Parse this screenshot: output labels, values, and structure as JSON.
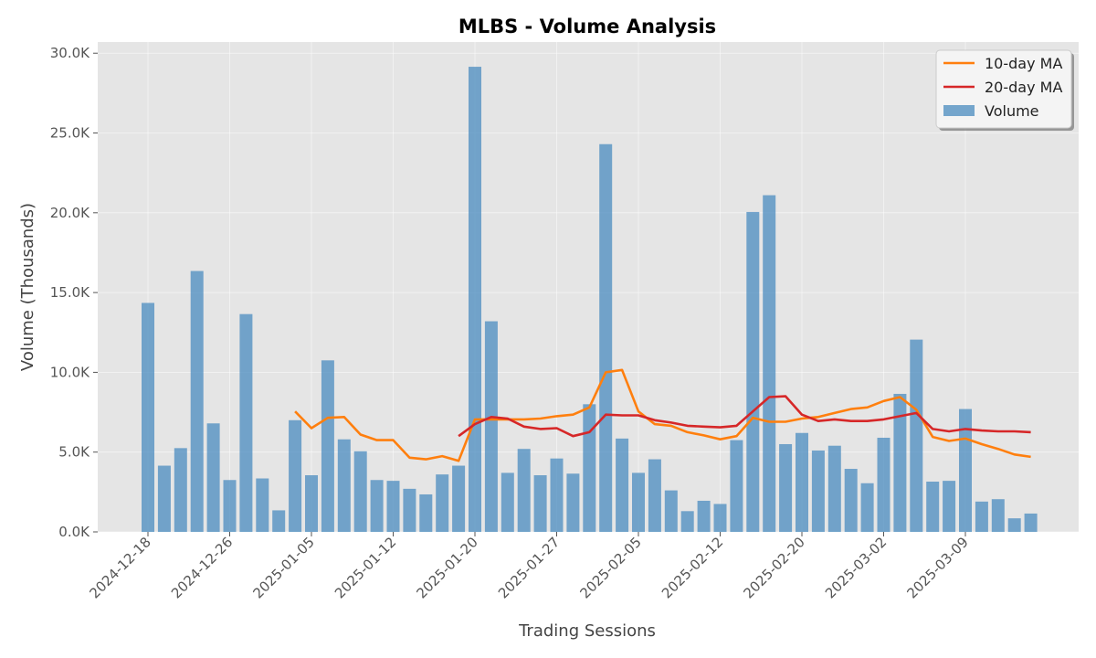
{
  "chart_data": {
    "type": "bar",
    "title": "MLBS - Volume Analysis",
    "xlabel": "Trading Sessions",
    "ylabel": "Volume (Thousands)",
    "ylim": [
      0,
      30700
    ],
    "y_ticks": [
      "0.0K",
      "5.0K",
      "10.0K",
      "15.0K",
      "20.0K",
      "25.0K",
      "30.0K"
    ],
    "y_tick_values": [
      0,
      5000,
      10000,
      15000,
      20000,
      25000,
      30000
    ],
    "x_tick_labels": [
      "2024-12-18",
      "2024-12-26",
      "2025-01-05",
      "2025-01-12",
      "2025-01-20",
      "2025-01-27",
      "2025-02-05",
      "2025-02-12",
      "2025-02-20",
      "2025-03-02",
      "2025-03-09"
    ],
    "x_tick_index": [
      0,
      5,
      10,
      15,
      20,
      25,
      30,
      35,
      40,
      45,
      50
    ],
    "grid": true,
    "legend_position": "top-right",
    "colors": {
      "volume": "#4a8bbf",
      "ma10": "#ff7f0e",
      "ma20": "#d62728",
      "background": "#e5e5e5",
      "grid": "#ffffff"
    },
    "series": [
      {
        "name": "Volume",
        "type": "bar",
        "values": [
          14350,
          4150,
          5250,
          16350,
          6800,
          3250,
          13650,
          3350,
          1350,
          7000,
          3550,
          10750,
          5800,
          5050,
          3250,
          3200,
          2700,
          2350,
          3600,
          4150,
          29150,
          13200,
          3700,
          5200,
          3550,
          4600,
          3650,
          8000,
          24300,
          5850,
          3700,
          4550,
          2600,
          1300,
          1950,
          1750,
          5750,
          20050,
          21100,
          5500,
          6200,
          5100,
          5400,
          3950,
          3050,
          5900,
          8650,
          12050,
          3150,
          3200,
          7700,
          1900,
          2050,
          850,
          1150
        ]
      },
      {
        "name": "10-day MA",
        "type": "line",
        "values": [
          null,
          null,
          null,
          null,
          null,
          null,
          null,
          null,
          null,
          7550,
          6500,
          7150,
          7200,
          6100,
          5750,
          5750,
          4650,
          4550,
          4750,
          4450,
          7050,
          7050,
          7050,
          7050,
          7100,
          7250,
          7350,
          7800,
          10000,
          10150,
          7550,
          6750,
          6650,
          6250,
          6050,
          5800,
          6000,
          7150,
          6900,
          6900,
          7100,
          7200,
          7450,
          7700,
          7800,
          8200,
          8450,
          7650,
          5950,
          5700,
          5850,
          5500,
          5200,
          4850,
          4700
        ]
      },
      {
        "name": "20-day MA",
        "type": "line",
        "values": [
          null,
          null,
          null,
          null,
          null,
          null,
          null,
          null,
          null,
          null,
          null,
          null,
          null,
          null,
          null,
          null,
          null,
          null,
          null,
          6000,
          6750,
          7200,
          7100,
          6600,
          6450,
          6500,
          6000,
          6250,
          7350,
          7300,
          7300,
          7000,
          6850,
          6650,
          6600,
          6550,
          6650,
          7550,
          8450,
          8500,
          7350,
          6950,
          7050,
          6950,
          6950,
          7050,
          7250,
          7450,
          6450,
          6300,
          6450,
          6350,
          6300,
          6300,
          6250
        ]
      }
    ]
  }
}
